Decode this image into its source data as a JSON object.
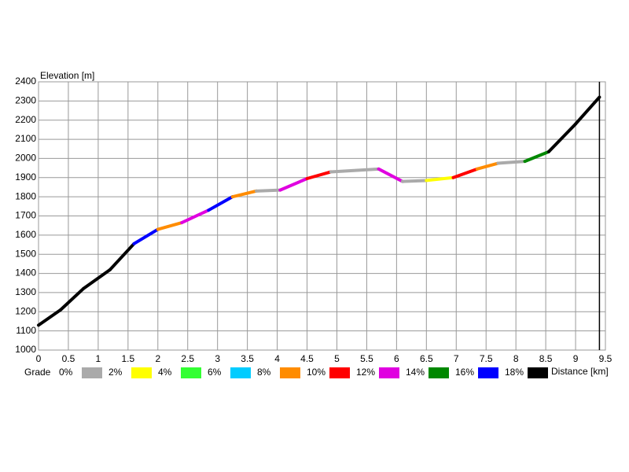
{
  "chart_data": {
    "type": "line",
    "y_label": "Elevation [m]",
    "x_label": "Distance [km]",
    "x": [
      0,
      0.37,
      0.75,
      1.2,
      1.6,
      2.0,
      2.4,
      2.85,
      3.25,
      3.65,
      4.05,
      4.5,
      4.9,
      5.7,
      6.1,
      6.5,
      6.95,
      7.35,
      7.7,
      8.15,
      8.55,
      9.0,
      9.4
    ],
    "y": [
      1130,
      1210,
      1320,
      1420,
      1555,
      1630,
      1665,
      1730,
      1800,
      1830,
      1835,
      1895,
      1930,
      1945,
      1880,
      1885,
      1900,
      1945,
      1975,
      1985,
      2035,
      2180,
      2320
    ],
    "segment_colors": [
      "#000000",
      "#000000",
      "#000000",
      "#000000",
      "#0000ff",
      "#ff8c00",
      "#e000e0",
      "#0000ff",
      "#ff8c00",
      "#aaaaaa",
      "#e000e0",
      "#ff0000",
      "#aaaaaa",
      "#e000e0",
      "#aaaaaa",
      "#ffff00",
      "#ff0000",
      "#ff8c00",
      "#aaaaaa",
      "#008800",
      "#000000",
      "#000000"
    ],
    "xlim": [
      0,
      9.5
    ],
    "ylim": [
      1000,
      2400
    ],
    "xticks": [
      0,
      0.5,
      1,
      1.5,
      2,
      2.5,
      3,
      3.5,
      4,
      4.5,
      5,
      5.5,
      6,
      6.5,
      7,
      7.5,
      8,
      8.5,
      9,
      9.5
    ],
    "yticks": [
      1000,
      1100,
      1200,
      1300,
      1400,
      1500,
      1600,
      1700,
      1800,
      1900,
      2000,
      2100,
      2200,
      2300,
      2400
    ],
    "grid": true,
    "legend": {
      "title": "Grade",
      "labels": [
        "0%",
        "2%",
        "4%",
        "6%",
        "8%",
        "10%",
        "12%",
        "14%",
        "16%",
        "18%"
      ],
      "colors": [
        "#aaaaaa",
        "#ffff00",
        "#33ff33",
        "#00ccff",
        "#ff8c00",
        "#ff0000",
        "#e000e0",
        "#008800",
        "#0000ff",
        "#000000"
      ]
    }
  }
}
